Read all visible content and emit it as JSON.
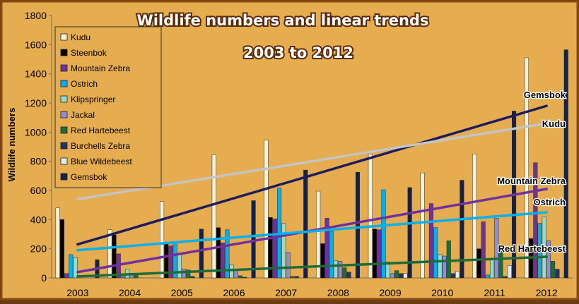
{
  "chart_data": {
    "type": "bar",
    "title": [
      "Wildlife numbers and linear trends",
      "2003 to 2012"
    ],
    "ylabel": "Wildlife numbers",
    "xlabel": "",
    "ylim": [
      0,
      1800
    ],
    "yticks": [
      "0",
      "200",
      "400",
      "600",
      "800",
      "1000",
      "1200",
      "1400",
      "1600",
      "1800"
    ],
    "grid": false,
    "legend_position": "left",
    "background": "#e3a84d",
    "categories": [
      "2003",
      "2004",
      "2005",
      "2006",
      "2007",
      "2008",
      "2009",
      "2010",
      "2011",
      "2012"
    ],
    "series": [
      {
        "name": "Kudu",
        "color": "#f4f1dc",
        "values": [
          480,
          330,
          525,
          845,
          945,
          595,
          850,
          720,
          850,
          1510
        ]
      },
      {
        "name": "Steenbok",
        "color": "#000000",
        "values": [
          400,
          295,
          240,
          345,
          415,
          235,
          335,
          0,
          200,
          270
        ]
      },
      {
        "name": "Mountain Zebra",
        "color": "#7030a0",
        "values": [
          30,
          165,
          220,
          240,
          405,
          410,
          330,
          510,
          385,
          790
        ]
      },
      {
        "name": "Ostrich",
        "color": "#00b0f0",
        "values": [
          160,
          10,
          250,
          330,
          615,
          320,
          605,
          345,
          20,
          375
        ]
      },
      {
        "name": "Klipspringer",
        "color": "#92ddd0",
        "values": [
          140,
          60,
          170,
          90,
          375,
          120,
          110,
          160,
          130,
          420
        ]
      },
      {
        "name": "Jackal",
        "color": "#8e8ed0",
        "values": [
          0,
          20,
          60,
          50,
          175,
          115,
          30,
          150,
          410,
          255
        ]
      },
      {
        "name": "Red Hartebeest",
        "color": "#1f6b3c",
        "values": [
          0,
          30,
          55,
          15,
          10,
          70,
          50,
          255,
          185,
          115
        ]
      },
      {
        "name": "Burchells Zebra",
        "color": "#1f3568",
        "values": [
          0,
          0,
          10,
          5,
          10,
          40,
          30,
          30,
          10,
          60
        ]
      },
      {
        "name": "Blue Wildebeest",
        "color": "#dbeef4",
        "values": [
          0,
          0,
          0,
          0,
          0,
          0,
          30,
          45,
          85,
          0
        ]
      },
      {
        "name": "Gemsbok",
        "color": "#12224f",
        "values": [
          125,
          0,
          335,
          530,
          740,
          725,
          620,
          670,
          1145,
          1565
        ]
      }
    ],
    "trendlines": [
      {
        "label": "Gemsbok",
        "color": "#1c1c5e",
        "start": 230,
        "end": 1180
      },
      {
        "label": "Kudu",
        "color": "#c4c4c4",
        "start": 540,
        "end": 1060
      },
      {
        "label": "Mountain Zebra",
        "color": "#7030a0",
        "start": 40,
        "end": 610
      },
      {
        "label": "Ostrich",
        "color": "#00b0f0",
        "start": 190,
        "end": 450
      },
      {
        "label": "Red Hartebeest",
        "color": "#1f6b3c",
        "start": 10,
        "end": 145
      }
    ]
  }
}
